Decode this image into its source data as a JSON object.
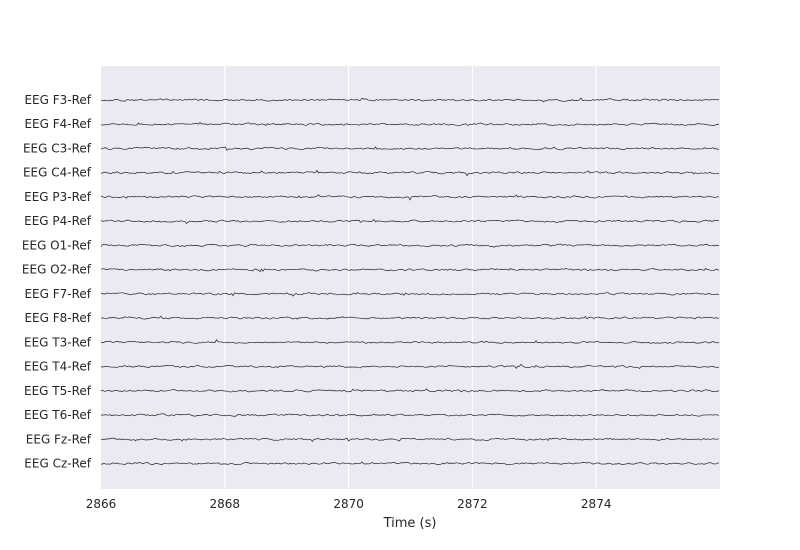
{
  "chart_data": {
    "type": "line",
    "title": "",
    "xlabel": "Time (s)",
    "ylabel": "",
    "xlim": [
      2866,
      2876
    ],
    "xticks": [
      2866,
      2868,
      2870,
      2872,
      2874
    ],
    "grid": true,
    "style": {
      "plot_bg": "#eaeaf2",
      "grid_color": "#ffffff",
      "trace_color": "#222222",
      "text_color": "#262626"
    },
    "channels": [
      "EEG F3-Ref",
      "EEG F4-Ref",
      "EEG C3-Ref",
      "EEG C4-Ref",
      "EEG P3-Ref",
      "EEG P4-Ref",
      "EEG O1-Ref",
      "EEG O2-Ref",
      "EEG F7-Ref",
      "EEG F8-Ref",
      "EEG T3-Ref",
      "EEG T4-Ref",
      "EEG T5-Ref",
      "EEG T6-Ref",
      "EEG Fz-Ref",
      "EEG Cz-Ref"
    ]
  }
}
